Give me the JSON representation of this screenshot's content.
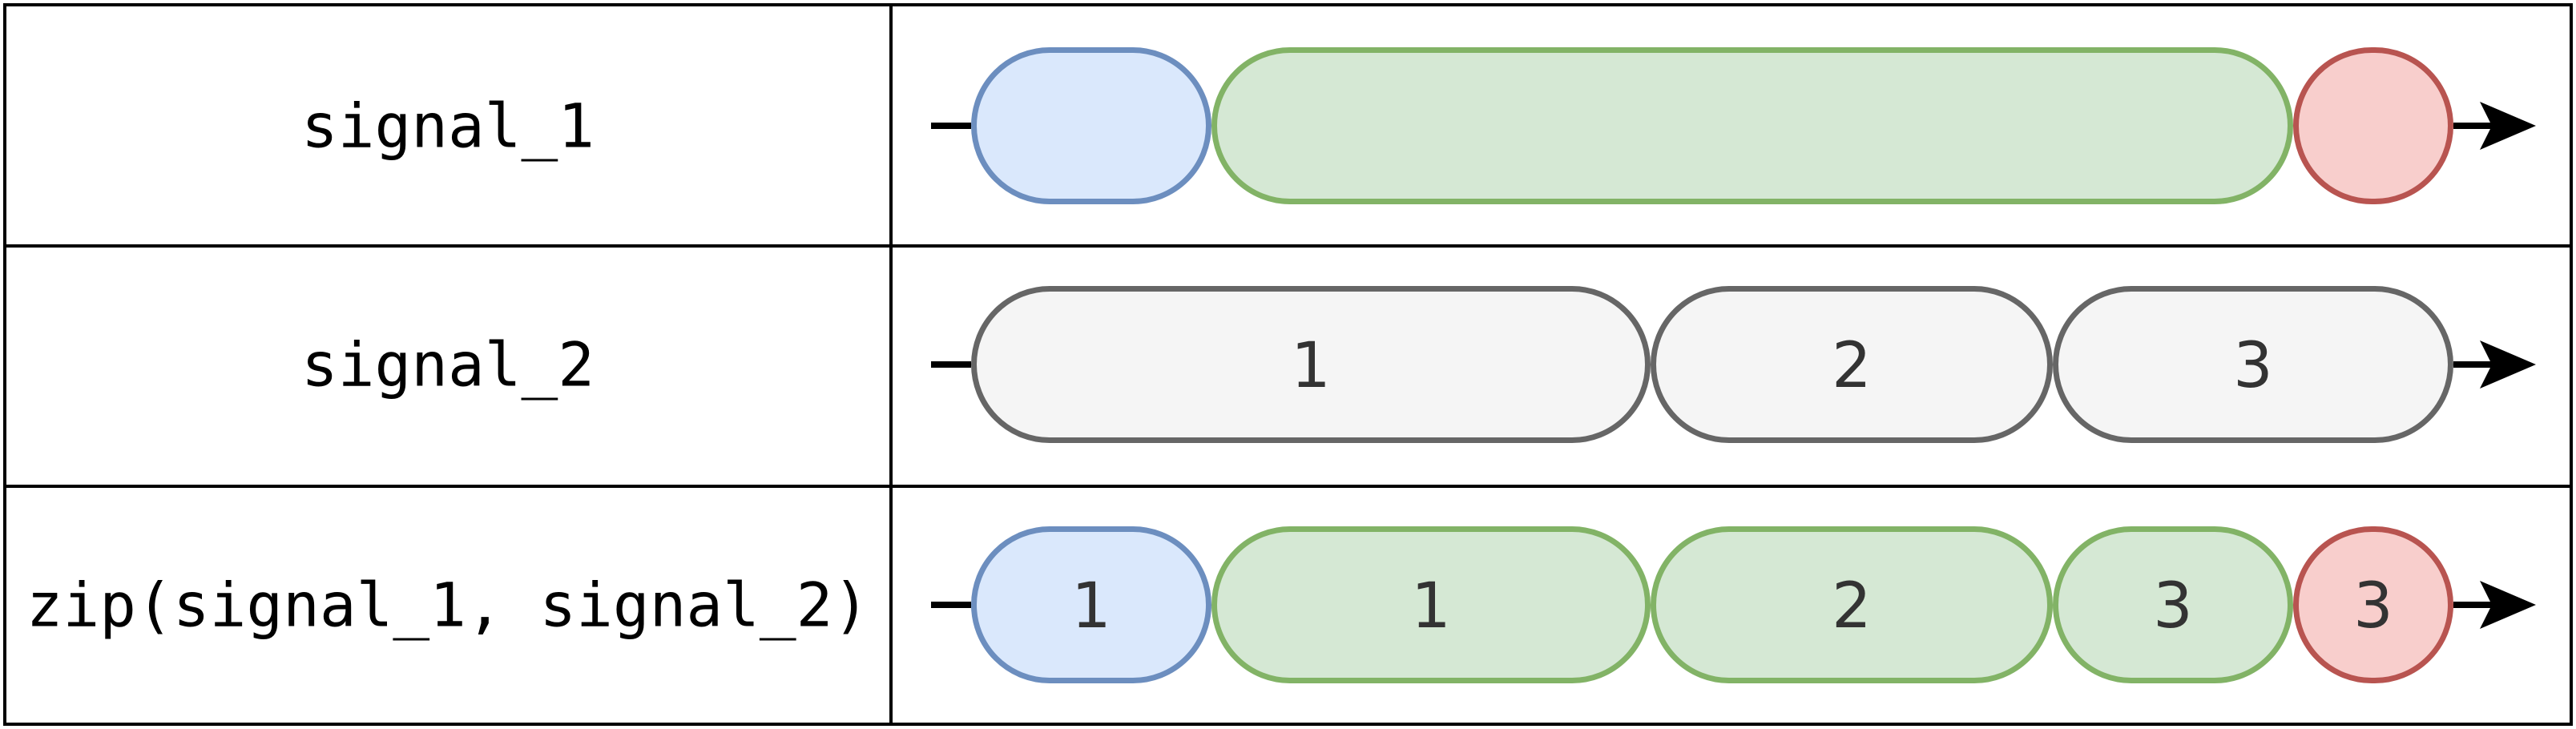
{
  "colors": {
    "blue": {
      "fill": "#dae8fc",
      "stroke": "#6c8ebf"
    },
    "green": {
      "fill": "#d5e8d4",
      "stroke": "#82b366"
    },
    "red": {
      "fill": "#f8cecc",
      "stroke": "#b85450"
    },
    "gray": {
      "fill": "#f5f5f5",
      "stroke": "#666666"
    },
    "line": "#000000"
  },
  "rows": [
    {
      "label": "signal_1",
      "segments": [
        {
          "color": "blue",
          "label": ""
        },
        {
          "color": "green",
          "label": ""
        },
        {
          "color": "red",
          "label": ""
        }
      ]
    },
    {
      "label": "signal_2",
      "segments": [
        {
          "color": "gray",
          "label": "1"
        },
        {
          "color": "gray",
          "label": "2"
        },
        {
          "color": "gray",
          "label": "3"
        }
      ]
    },
    {
      "label": "zip(signal_1, signal_2)",
      "segments": [
        {
          "color": "blue",
          "label": "1"
        },
        {
          "color": "green",
          "label": "1"
        },
        {
          "color": "green",
          "label": "2"
        },
        {
          "color": "green",
          "label": "3"
        },
        {
          "color": "red",
          "label": "3"
        }
      ]
    }
  ]
}
